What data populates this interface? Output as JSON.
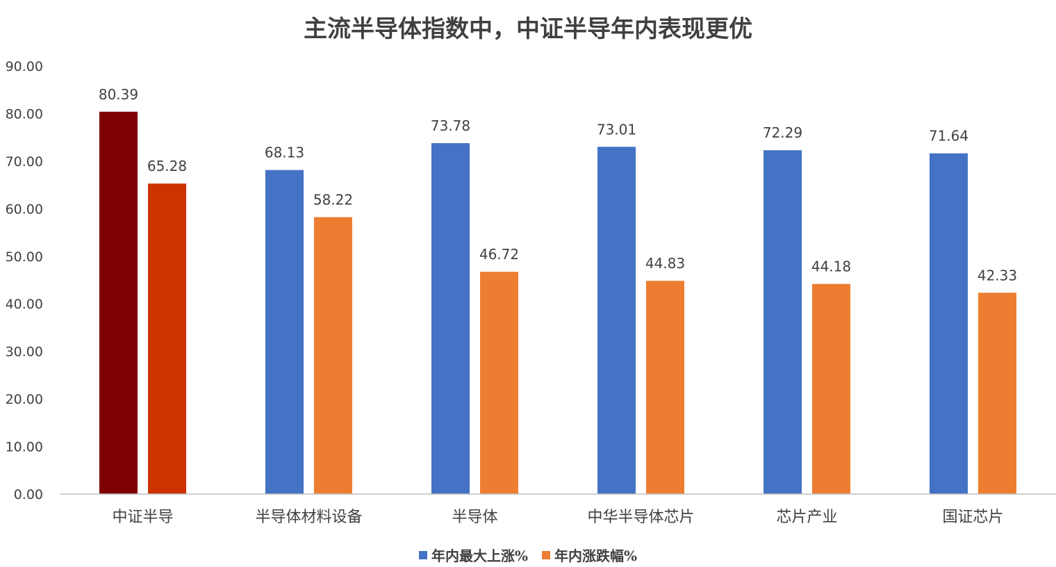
{
  "chart_data": {
    "type": "bar",
    "title": "主流半导体指数中，中证半导年内表现更优",
    "categories": [
      "中证半导",
      "半导体材料设备",
      "半导体",
      "中华半导体芯片",
      "芯片产业",
      "国证芯片"
    ],
    "series": [
      {
        "name": "年内最大上涨%",
        "color": "#4472C4",
        "values": [
          80.39,
          68.13,
          73.78,
          73.01,
          72.29,
          71.64
        ],
        "labels": [
          "80.39",
          "68.13",
          "73.78",
          "73.01",
          "72.29",
          "71.64"
        ],
        "highlight_colors": [
          "#7F0000",
          null,
          null,
          null,
          null,
          null
        ]
      },
      {
        "name": "年内涨跌幅%",
        "color": "#ED7D31",
        "values": [
          65.28,
          58.22,
          46.72,
          44.83,
          44.18,
          42.33
        ],
        "labels": [
          "65.28",
          "58.22",
          "46.72",
          "44.83",
          "44.18",
          "42.33"
        ],
        "highlight_colors": [
          "#CC3300",
          null,
          null,
          null,
          null,
          null
        ]
      }
    ],
    "y_ticks": [
      "0.00",
      "10.00",
      "20.00",
      "30.00",
      "40.00",
      "50.00",
      "60.00",
      "70.00",
      "80.00",
      "90.00"
    ],
    "ylim": [
      0,
      90
    ],
    "grid": false,
    "legend_position": "bottom"
  }
}
